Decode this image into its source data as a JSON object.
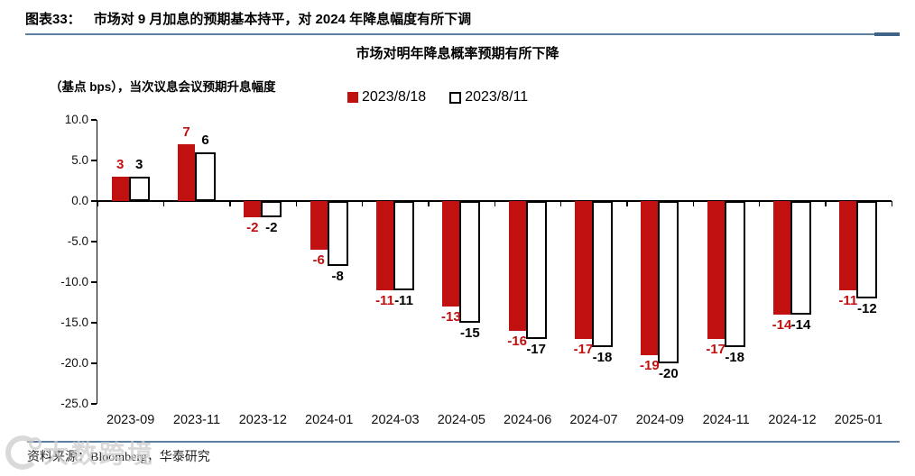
{
  "header": {
    "figure_label": "图表33：",
    "title": "市场对 9 月加息的预期基本持平，对 2024 年降息幅度有所下调"
  },
  "chart_data": {
    "type": "bar",
    "title": "市场对明年降息概率预期有所下降",
    "unit_label": "（基点 bps），当次议息会议预期升息幅度",
    "categories": [
      "2023-09",
      "2023-11",
      "2023-12",
      "2024-01",
      "2024-03",
      "2024-05",
      "2024-06",
      "2024-07",
      "2024-09",
      "2024-11",
      "2024-12",
      "2025-01"
    ],
    "series": [
      {
        "name": "2023/8/18",
        "style": "filled",
        "color": "#c01010",
        "values": [
          3,
          7,
          -2,
          -6,
          -11,
          -13,
          -16,
          -17,
          -19,
          -17,
          -14,
          -11
        ]
      },
      {
        "name": "2023/8/11",
        "style": "outline",
        "color": "#ffffff",
        "border_color": "#000000",
        "values": [
          3,
          6,
          -2,
          -8,
          -11,
          -15,
          -17,
          -18,
          -20,
          -18,
          -14,
          -12
        ]
      }
    ],
    "ylim": [
      -25,
      10
    ],
    "ytick_step": 5,
    "ytick_labels": [
      "10.0",
      "5.0",
      "0.0",
      "-5.0",
      "-10.0",
      "-15.0",
      "-20.0",
      "-25.0"
    ],
    "grid": false,
    "legend_position": "top",
    "data_labels": true
  },
  "footer": {
    "source": "资料来源：Bloomberg，华泰研究"
  },
  "watermark": {
    "text": "大数跨境"
  },
  "colors": {
    "accent_red": "#c01010",
    "rule_blue": "#5c80a1"
  }
}
